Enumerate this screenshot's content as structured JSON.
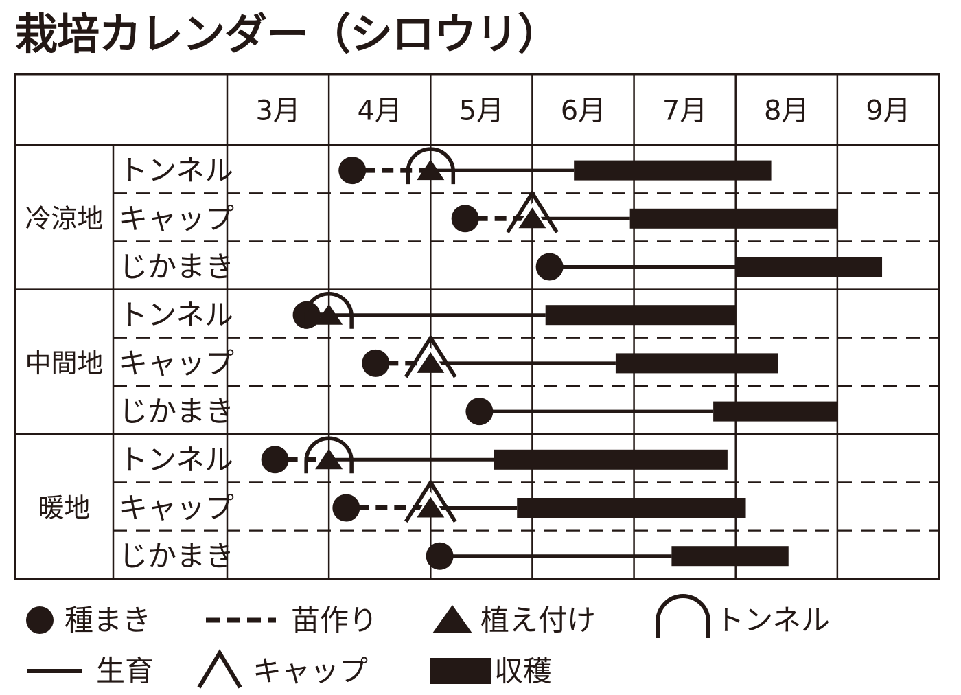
{
  "title": "栽培カレンダー（シロウリ）",
  "colors": {
    "ink": "#231815",
    "background": "#ffffff"
  },
  "months": [
    "3月",
    "4月",
    "5月",
    "6月",
    "7月",
    "8月",
    "9月"
  ],
  "legend": {
    "sowing": "種まき",
    "nursery": "苗作り",
    "planting": "植え付け",
    "tunnel": "トンネル",
    "growth": "生育",
    "cap": "キャップ",
    "harvest": "収穫"
  },
  "regions": [
    {
      "name": "冷涼地",
      "rows": [
        {
          "method": "トンネル",
          "cover": "tunnel",
          "sow": 4.23,
          "plant": 5.0,
          "grow_end": 6.41,
          "harvest_end": 8.35
        },
        {
          "method": "キャップ",
          "cover": "cap",
          "sow": 5.34,
          "plant": 6.0,
          "grow_end": 6.96,
          "harvest_end": 9.0
        },
        {
          "method": "じかまき",
          "cover": "none",
          "sow": 6.17,
          "plant": null,
          "grow_end": 8.0,
          "harvest_end": 9.44
        }
      ]
    },
    {
      "name": "中間地",
      "rows": [
        {
          "method": "トンネル",
          "cover": "tunnel",
          "sow": 3.78,
          "plant": 4.0,
          "grow_end": 6.13,
          "harvest_end": 8.0
        },
        {
          "method": "キャップ",
          "cover": "cap",
          "sow": 4.46,
          "plant": 5.0,
          "grow_end": 6.82,
          "harvest_end": 8.42
        },
        {
          "method": "じかまき",
          "cover": "none",
          "sow": 5.48,
          "plant": null,
          "grow_end": 7.78,
          "harvest_end": 9.0
        }
      ]
    },
    {
      "name": "暖地",
      "rows": [
        {
          "method": "トンネル",
          "cover": "tunnel",
          "sow": 3.47,
          "plant": 4.0,
          "grow_end": 5.62,
          "harvest_end": 7.92
        },
        {
          "method": "キャップ",
          "cover": "cap",
          "sow": 4.17,
          "plant": 5.0,
          "grow_end": 5.85,
          "harvest_end": 8.1
        },
        {
          "method": "じかまき",
          "cover": "none",
          "sow": 5.09,
          "plant": null,
          "grow_end": 7.37,
          "harvest_end": 8.52
        }
      ]
    }
  ]
}
